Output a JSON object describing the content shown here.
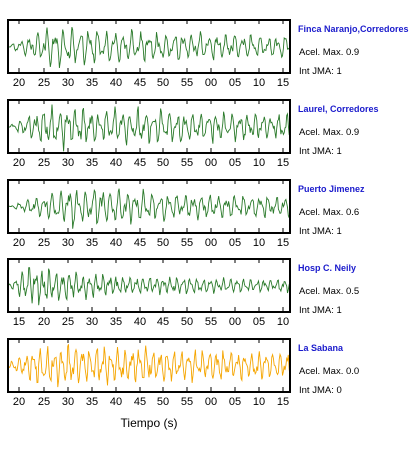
{
  "colors": {
    "green_trace": "#2a7a2a",
    "orange_trace": "#f5a500",
    "station_name": "#1a1acc",
    "frame": "#000000"
  },
  "chart_data": {
    "type": "line",
    "xlabel": "Tiempo (s)",
    "panels": [
      {
        "station": "Finca Naranjo,Corredores",
        "acel_label": "Acel. Max. 0.9",
        "int_label": "Int JMA: 1",
        "color": "#2a7a2a",
        "x_ticks": [
          "20",
          "25",
          "30",
          "35",
          "40",
          "45",
          "50",
          "55",
          "00",
          "05",
          "10",
          "15"
        ],
        "wave": {
          "onset": 0.03,
          "peak": 0.14,
          "decay": 2.2,
          "freq": 33,
          "floor": 0.45,
          "seed": 11
        }
      },
      {
        "station": "Laurel, Corredores",
        "acel_label": "Acel. Max. 0.9",
        "int_label": "Int JMA: 1",
        "color": "#2a7a2a",
        "x_ticks": [
          "20",
          "25",
          "30",
          "35",
          "40",
          "45",
          "50",
          "55",
          "00",
          "05",
          "10",
          "15"
        ],
        "wave": {
          "onset": 0.03,
          "peak": 0.15,
          "decay": 1.8,
          "freq": 36,
          "floor": 0.5,
          "seed": 23
        }
      },
      {
        "station": "Puerto Jimenez",
        "acel_label": "Acel. Max. 0.6",
        "int_label": "Int JMA: 1",
        "color": "#2a7a2a",
        "x_ticks": [
          "20",
          "25",
          "30",
          "35",
          "40",
          "45",
          "50",
          "55",
          "00",
          "05",
          "10",
          "15"
        ],
        "wave": {
          "onset": 0.05,
          "peak": 0.23,
          "decay": 2.4,
          "freq": 34,
          "floor": 0.4,
          "seed": 37
        }
      },
      {
        "station": "Hosp C. Neily",
        "acel_label": "Acel. Max. 0.5",
        "int_label": "Int JMA: 1",
        "color": "#2a7a2a",
        "x_ticks": [
          "15",
          "20",
          "25",
          "30",
          "35",
          "40",
          "45",
          "50",
          "55",
          "00",
          "05",
          "10"
        ],
        "wave": {
          "onset": 0.02,
          "peak": 0.06,
          "decay": 4.0,
          "freq": 42,
          "floor": 0.3,
          "seed": 51
        }
      },
      {
        "station": "La Sabana",
        "acel_label": "Acel. Max. 0.0",
        "int_label": "Int JMA: 0",
        "color": "#f5a500",
        "x_ticks": [
          "20",
          "25",
          "30",
          "35",
          "40",
          "45",
          "50",
          "55",
          "00",
          "05",
          "10",
          "15"
        ],
        "wave": {
          "onset": 0.01,
          "peak": 0.12,
          "decay": 1.6,
          "freq": 40,
          "floor": 0.55,
          "seed": 67
        }
      }
    ]
  }
}
